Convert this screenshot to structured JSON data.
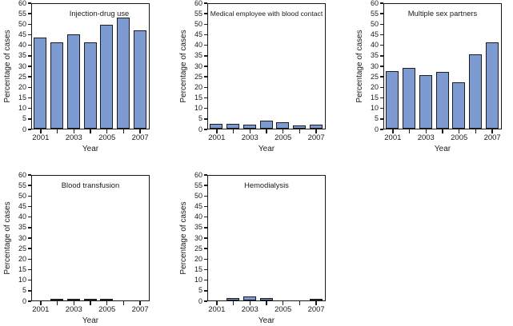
{
  "figure": {
    "background": "#ffffff",
    "bar_fill": "#7d9bd0",
    "bar_border": "#1c1c26",
    "axis_color": "#1a1a1a",
    "text_color": "#1a1a1a"
  },
  "chart_data": [
    {
      "id": "injection-drug-use",
      "type": "bar",
      "title": "Injection-drug use",
      "xlabel": "Year",
      "ylabel": "Percentage of cases",
      "ylim": [
        0,
        60
      ],
      "ytick_step": 5,
      "grid": false,
      "categories": [
        "2001",
        "2002",
        "2003",
        "2004",
        "2005",
        "2006",
        "2007"
      ],
      "xtick_labels_shown": [
        "2001",
        "2003",
        "2005",
        "2007"
      ],
      "values": [
        44,
        42,
        45.5,
        42,
        50.5,
        54,
        47.5
      ],
      "title_offset_x": 11
    },
    {
      "id": "medical-employee-with-blood-contact",
      "type": "bar",
      "title": "Medical employee with blood contact",
      "xlabel": "Year",
      "ylabel": "Percentage of cases",
      "ylim": [
        0,
        60
      ],
      "ytick_step": 5,
      "grid": false,
      "categories": [
        "2001",
        "2002",
        "2003",
        "2004",
        "2005",
        "2006",
        "2007"
      ],
      "xtick_labels_shown": [
        "2001",
        "2003",
        "2005",
        "2007"
      ],
      "values": [
        2.5,
        2.5,
        2,
        3.8,
        3,
        1.5,
        2
      ],
      "title_offset_x": 0
    },
    {
      "id": "multiple-sex-partners",
      "type": "bar",
      "title": "Multiple sex partners",
      "xlabel": "Year",
      "ylabel": "Percentage of cases",
      "ylim": [
        0,
        60
      ],
      "ytick_step": 5,
      "grid": false,
      "categories": [
        "2001",
        "2002",
        "2003",
        "2004",
        "2005",
        "2006",
        "2007"
      ],
      "xtick_labels_shown": [
        "2001",
        "2003",
        "2005",
        "2007"
      ],
      "values": [
        28,
        29.5,
        26,
        27.5,
        22.5,
        36,
        42
      ],
      "title_offset_x": 0
    },
    {
      "id": "blood-transfusion",
      "type": "bar",
      "title": "Blood transfusion",
      "xlabel": "Year",
      "ylabel": "Percentage of cases",
      "ylim": [
        0,
        60
      ],
      "ytick_step": 5,
      "grid": false,
      "categories": [
        "2001",
        "2002",
        "2003",
        "2004",
        "2005",
        "2006",
        "2007"
      ],
      "xtick_labels_shown": [
        "2001",
        "2003",
        "2005",
        "2007"
      ],
      "values": [
        0,
        0.8,
        0.8,
        0.8,
        0.8,
        0,
        0
      ],
      "title_offset_x": 0
    },
    {
      "id": "hemodialysis",
      "type": "bar",
      "title": "Hemodialysis",
      "xlabel": "Year",
      "ylabel": "Percentage of cases",
      "ylim": [
        0,
        60
      ],
      "ytick_step": 5,
      "grid": false,
      "categories": [
        "2001",
        "2002",
        "2003",
        "2004",
        "2005",
        "2006",
        "2007"
      ],
      "xtick_labels_shown": [
        "2001",
        "2003",
        "2005",
        "2007"
      ],
      "values": [
        0,
        1,
        1.8,
        1,
        0,
        0,
        0.7
      ],
      "title_offset_x": 0
    }
  ]
}
